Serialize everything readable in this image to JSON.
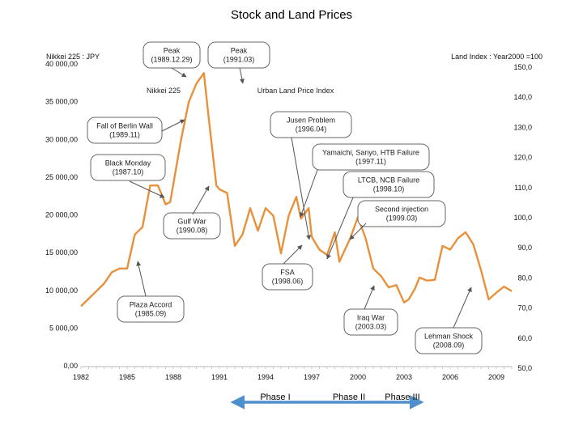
{
  "chart_data": {
    "type": "line",
    "title": "Stock and Land Prices",
    "left_axis_label": "Nikkei 225 : JPY",
    "right_axis_label": "Land Index : Year2000 =100",
    "left_ylim": [
      0,
      40000
    ],
    "right_ylim": [
      50,
      150
    ],
    "left_ticks": [
      "0,00",
      "5 000,00",
      "10 000,00",
      "15 000,00",
      "20 000,00",
      "25 000,00",
      "30 000,00",
      "35 000,00",
      "40 000,00"
    ],
    "right_ticks": [
      "50,0",
      "60,0",
      "70,0",
      "80,0",
      "90,0",
      "100,0",
      "110,0",
      "120,0",
      "130,0",
      "140,0",
      "150,0"
    ],
    "x_tick_labels": [
      "1982",
      "1985",
      "1988",
      "1991",
      "1994",
      "1997",
      "2000",
      "2003",
      "2006",
      "2009"
    ],
    "xlim": [
      1982,
      2010
    ],
    "series": [
      {
        "name": "Nikkei 225",
        "color": "#E8913C",
        "x": [
          1982.0,
          1982.5,
          1983.0,
          1983.5,
          1984.0,
          1984.5,
          1985.0,
          1985.5,
          1986.0,
          1986.5,
          1987.0,
          1987.5,
          1987.8,
          1988.5,
          1989.0,
          1989.5,
          1989.99,
          1990.3,
          1990.8,
          1991.0,
          1991.5,
          1992.0,
          1992.5,
          1993.0,
          1993.5,
          1994.0,
          1994.5,
          1995.0,
          1995.5,
          1996.0,
          1996.3,
          1996.8,
          1997.0,
          1997.5,
          1998.0,
          1998.5,
          1998.8,
          1999.5,
          2000.0,
          2000.5,
          2001.0,
          2001.5,
          2002.0,
          2002.5,
          2003.0,
          2003.3,
          2003.7,
          2004.0,
          2004.5,
          2005.0,
          2005.5,
          2006.0,
          2006.5,
          2007.0,
          2007.5,
          2008.0,
          2008.5,
          2009.0,
          2009.5,
          2010.0
        ],
        "values": [
          8000,
          9000,
          10000,
          11000,
          12500,
          13000,
          13000,
          17500,
          18500,
          24000,
          24000,
          21500,
          21800,
          30000,
          35000,
          37500,
          38900,
          33000,
          24000,
          23500,
          23000,
          16000,
          17500,
          21000,
          18000,
          21000,
          20000,
          15000,
          20000,
          22500,
          19600,
          21000,
          17200,
          15500,
          14800,
          17800,
          13900,
          17000,
          19800,
          17000,
          13000,
          12000,
          10500,
          10800,
          8500,
          8900,
          10300,
          11800,
          11400,
          11500,
          16000,
          15500,
          17000,
          17800,
          16200,
          12800,
          8900,
          9800,
          10600,
          10000
        ]
      }
    ],
    "callouts": [
      {
        "text": [
          "Peak",
          "(1989.12.29)"
        ]
      },
      {
        "text": [
          "Peak",
          "(1991.03)"
        ]
      },
      {
        "text": [
          "Nikkei 225"
        ]
      },
      {
        "text": [
          "Urban Land Price Index"
        ]
      },
      {
        "text": [
          "Fall of Berlin Wall",
          "(1989.11)"
        ]
      },
      {
        "text": [
          "Jusen Problem",
          "(1996.04)"
        ]
      },
      {
        "text": [
          "Black Monday",
          "(1987.10)"
        ]
      },
      {
        "text": [
          "Yamaichi, Sanyo, HTB Failure",
          "(1997.11)"
        ]
      },
      {
        "text": [
          "LTCB, NCB Failure",
          "(1998.10)"
        ]
      },
      {
        "text": [
          "Second injection",
          "(1999.03)"
        ]
      },
      {
        "text": [
          "Gulf War",
          "(1990.08)"
        ]
      },
      {
        "text": [
          "FSA",
          "(1998.06)"
        ]
      },
      {
        "text": [
          "Plaza Accord",
          "(1985.09)"
        ]
      },
      {
        "text": [
          "Iraq War",
          "(2003.03)"
        ]
      },
      {
        "text": [
          "Lehman Shock",
          "(2008.09)"
        ]
      }
    ],
    "phases": [
      "Phase I",
      "Phase II",
      "Phase III"
    ],
    "phase_color": "#4F8FCB"
  }
}
